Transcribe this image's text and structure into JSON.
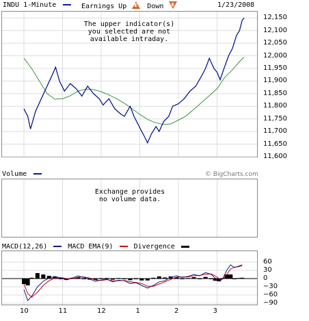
{
  "header": {
    "symbol_label": "INDU 1-Minute",
    "earnings_label": "Earnings Up",
    "earnings_up_icon": "E",
    "down_label": "Down",
    "earnings_down_icon": "E",
    "date": "1/23/2008"
  },
  "colors": {
    "price_line": "#0a1a8c",
    "moving_average": "#3f8f3f",
    "macd": "#0a1a8c",
    "signal": "#cc0000",
    "divergence": "#000000",
    "earnings_icon": "#d4642a",
    "grid": "#dcdcdc",
    "frame": "#888888"
  },
  "price_panel": {
    "message": "The upper indicator(s)\nyou selected are not\navailable intraday.",
    "y_ticks": [
      "12,150",
      "12,100",
      "12,050",
      "12,000",
      "11,950",
      "11,900",
      "11,850",
      "11,800",
      "11,750",
      "11,700",
      "11,650",
      "11,600"
    ]
  },
  "volume_panel": {
    "label": "Volume",
    "copyright": "© BigCharts.com",
    "message": "Exchange provides\nno volume data."
  },
  "macd_panel": {
    "macd_label": "MACD(12,26)",
    "ema_label": "MACD EMA(9)",
    "divergence_label": "Divergence",
    "y_ticks": [
      "60",
      "30",
      "0",
      "−30",
      "−60",
      "−90"
    ]
  },
  "x_axis": {
    "labels": [
      "10",
      "11",
      "12",
      "1",
      "2",
      "3"
    ]
  },
  "chart_data": [
    {
      "type": "line",
      "title": "INDU 1-Minute",
      "x_labels": [
        "10",
        "11",
        "12",
        "1",
        "2",
        "3"
      ],
      "ylim": [
        11600,
        12175
      ],
      "series": [
        {
          "name": "INDU",
          "points": [
            [
              0.0,
              11790
            ],
            [
              0.1,
              11760
            ],
            [
              0.17,
              11710
            ],
            [
              0.3,
              11780
            ],
            [
              0.45,
              11830
            ],
            [
              0.6,
              11880
            ],
            [
              0.75,
              11930
            ],
            [
              0.82,
              11955
            ],
            [
              0.92,
              11900
            ],
            [
              1.05,
              11860
            ],
            [
              1.2,
              11890
            ],
            [
              1.35,
              11870
            ],
            [
              1.5,
              11840
            ],
            [
              1.65,
              11880
            ],
            [
              1.8,
              11850
            ],
            [
              1.95,
              11830
            ],
            [
              2.05,
              11805
            ],
            [
              2.2,
              11830
            ],
            [
              2.35,
              11790
            ],
            [
              2.5,
              11770
            ],
            [
              2.6,
              11760
            ],
            [
              2.75,
              11800
            ],
            [
              2.85,
              11760
            ],
            [
              2.95,
              11730
            ],
            [
              3.05,
              11700
            ],
            [
              3.12,
              11680
            ],
            [
              3.2,
              11655
            ],
            [
              3.3,
              11690
            ],
            [
              3.42,
              11720
            ],
            [
              3.5,
              11700
            ],
            [
              3.62,
              11740
            ],
            [
              3.75,
              11760
            ],
            [
              3.85,
              11800
            ],
            [
              4.0,
              11810
            ],
            [
              4.15,
              11830
            ],
            [
              4.3,
              11860
            ],
            [
              4.45,
              11880
            ],
            [
              4.6,
              11920
            ],
            [
              4.7,
              11950
            ],
            [
              4.8,
              11990
            ],
            [
              4.92,
              11950
            ],
            [
              5.0,
              11935
            ],
            [
              5.08,
              11905
            ],
            [
              5.18,
              11950
            ],
            [
              5.3,
              12000
            ],
            [
              5.4,
              12030
            ],
            [
              5.5,
              12080
            ],
            [
              5.58,
              12100
            ],
            [
              5.65,
              12140
            ],
            [
              5.7,
              12150
            ]
          ]
        },
        {
          "name": "Moving average",
          "points": [
            [
              0.0,
              11990
            ],
            [
              0.2,
              11950
            ],
            [
              0.4,
              11900
            ],
            [
              0.6,
              11850
            ],
            [
              0.8,
              11828
            ],
            [
              1.0,
              11830
            ],
            [
              1.2,
              11842
            ],
            [
              1.4,
              11860
            ],
            [
              1.6,
              11868
            ],
            [
              1.8,
              11866
            ],
            [
              2.0,
              11858
            ],
            [
              2.2,
              11845
            ],
            [
              2.4,
              11830
            ],
            [
              2.6,
              11812
            ],
            [
              2.8,
              11790
            ],
            [
              3.0,
              11768
            ],
            [
              3.2,
              11748
            ],
            [
              3.4,
              11735
            ],
            [
              3.6,
              11728
            ],
            [
              3.8,
              11730
            ],
            [
              4.0,
              11745
            ],
            [
              4.2,
              11762
            ],
            [
              4.4,
              11788
            ],
            [
              4.6,
              11815
            ],
            [
              4.8,
              11842
            ],
            [
              5.0,
              11870
            ],
            [
              5.2,
              11915
            ],
            [
              5.4,
              11945
            ],
            [
              5.6,
              11980
            ],
            [
              5.7,
              11995
            ]
          ]
        }
      ]
    },
    {
      "type": "line",
      "title": "MACD(12,26)",
      "x_labels": [
        "10",
        "11",
        "12",
        "1",
        "2",
        "3"
      ],
      "ylim": [
        -90,
        60
      ],
      "series": [
        {
          "name": "MACD(12,26)",
          "points": [
            [
              0.0,
              -40
            ],
            [
              0.1,
              -80
            ],
            [
              0.2,
              -65
            ],
            [
              0.35,
              -30
            ],
            [
              0.5,
              -10
            ],
            [
              0.65,
              2
            ],
            [
              0.8,
              8
            ],
            [
              0.95,
              2
            ],
            [
              1.1,
              -5
            ],
            [
              1.25,
              2
            ],
            [
              1.4,
              10
            ],
            [
              1.55,
              4
            ],
            [
              1.7,
              -2
            ],
            [
              1.85,
              -10
            ],
            [
              2.0,
              -5
            ],
            [
              2.15,
              -2
            ],
            [
              2.3,
              -12
            ],
            [
              2.45,
              -6
            ],
            [
              2.6,
              -8
            ],
            [
              2.75,
              -18
            ],
            [
              2.9,
              -15
            ],
            [
              3.05,
              -25
            ],
            [
              3.2,
              -35
            ],
            [
              3.35,
              -25
            ],
            [
              3.5,
              -12
            ],
            [
              3.65,
              -8
            ],
            [
              3.8,
              5
            ],
            [
              3.95,
              10
            ],
            [
              4.1,
              4
            ],
            [
              4.25,
              8
            ],
            [
              4.4,
              15
            ],
            [
              4.55,
              10
            ],
            [
              4.7,
              22
            ],
            [
              4.85,
              15
            ],
            [
              4.95,
              2
            ],
            [
              5.05,
              -10
            ],
            [
              5.15,
              0
            ],
            [
              5.25,
              30
            ],
            [
              5.35,
              50
            ],
            [
              5.45,
              40
            ],
            [
              5.55,
              45
            ],
            [
              5.65,
              50
            ]
          ]
        },
        {
          "name": "MACD EMA(9)",
          "points": [
            [
              0.0,
              -20
            ],
            [
              0.1,
              -55
            ],
            [
              0.2,
              -68
            ],
            [
              0.35,
              -50
            ],
            [
              0.5,
              -25
            ],
            [
              0.65,
              -8
            ],
            [
              0.8,
              2
            ],
            [
              0.95,
              4
            ],
            [
              1.1,
              0
            ],
            [
              1.25,
              -1
            ],
            [
              1.4,
              5
            ],
            [
              1.55,
              6
            ],
            [
              1.7,
              2
            ],
            [
              1.85,
              -5
            ],
            [
              2.0,
              -7
            ],
            [
              2.15,
              -4
            ],
            [
              2.3,
              -8
            ],
            [
              2.45,
              -8
            ],
            [
              2.6,
              -7
            ],
            [
              2.75,
              -12
            ],
            [
              2.9,
              -14
            ],
            [
              3.05,
              -18
            ],
            [
              3.2,
              -28
            ],
            [
              3.35,
              -28
            ],
            [
              3.5,
              -20
            ],
            [
              3.65,
              -12
            ],
            [
              3.8,
              -3
            ],
            [
              3.95,
              5
            ],
            [
              4.1,
              6
            ],
            [
              4.25,
              6
            ],
            [
              4.4,
              10
            ],
            [
              4.55,
              12
            ],
            [
              4.7,
              16
            ],
            [
              4.85,
              17
            ],
            [
              4.95,
              10
            ],
            [
              5.05,
              0
            ],
            [
              5.15,
              -2
            ],
            [
              5.25,
              15
            ],
            [
              5.35,
              35
            ],
            [
              5.45,
              42
            ],
            [
              5.55,
              43
            ],
            [
              5.65,
              47
            ]
          ]
        },
        {
          "name": "Divergence",
          "type": "bar",
          "points": [
            [
              0.0,
              -20
            ],
            [
              0.1,
              -25
            ],
            [
              0.2,
              3
            ],
            [
              0.35,
              20
            ],
            [
              0.5,
              15
            ],
            [
              0.65,
              10
            ],
            [
              0.8,
              6
            ],
            [
              0.95,
              -2
            ],
            [
              1.1,
              -5
            ],
            [
              1.25,
              3
            ],
            [
              1.4,
              5
            ],
            [
              1.55,
              -2
            ],
            [
              1.7,
              -4
            ],
            [
              1.85,
              -5
            ],
            [
              2.0,
              2
            ],
            [
              2.15,
              2
            ],
            [
              2.3,
              -4
            ],
            [
              2.45,
              2
            ],
            [
              2.6,
              -1
            ],
            [
              2.75,
              -6
            ],
            [
              2.9,
              -1
            ],
            [
              3.05,
              -7
            ],
            [
              3.2,
              -7
            ],
            [
              3.35,
              3
            ],
            [
              3.5,
              8
            ],
            [
              3.65,
              4
            ],
            [
              3.8,
              8
            ],
            [
              3.95,
              5
            ],
            [
              4.1,
              -2
            ],
            [
              4.25,
              2
            ],
            [
              4.4,
              5
            ],
            [
              4.55,
              -2
            ],
            [
              4.7,
              6
            ],
            [
              4.85,
              -2
            ],
            [
              4.95,
              -8
            ],
            [
              5.05,
              -10
            ],
            [
              5.15,
              2
            ],
            [
              5.25,
              15
            ],
            [
              5.35,
              15
            ],
            [
              5.45,
              -2
            ],
            [
              5.55,
              2
            ],
            [
              5.65,
              3
            ]
          ]
        }
      ]
    }
  ]
}
